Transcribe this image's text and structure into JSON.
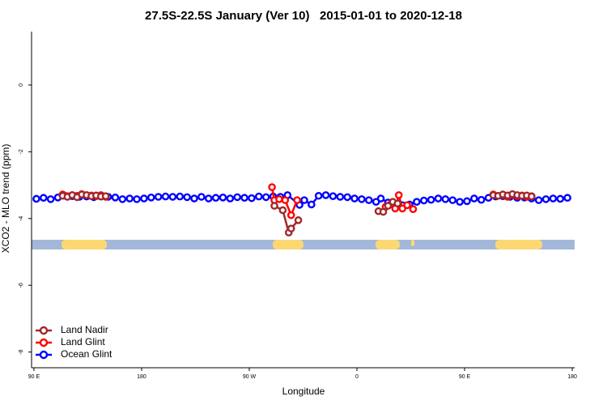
{
  "chart_data": {
    "type": "line",
    "title": "27.5S-22.5S January (Ver 10)   2015-01-01 to 2020-12-18",
    "x_label": "Longitude",
    "y_label": "XCO2 - MLO trend (ppm)",
    "xlim": [
      88,
      542
    ],
    "ylim": [
      -8.47,
      1.6
    ],
    "xticks": [
      {
        "value": 90,
        "label": "90 E"
      },
      180,
      {
        "value": 270,
        "label": "90 W"
      },
      {
        "value": 360,
        "label": "0"
      },
      {
        "value": 450,
        "label": "90 E"
      },
      {
        "value": 540,
        "label": "180"
      }
    ],
    "yticks": [
      0,
      -2,
      -4,
      -6,
      -8
    ],
    "legend": "bottom-left",
    "series": [
      {
        "name": "Land Nadir",
        "color": "#a0282c",
        "x": [
          114,
          118,
          122,
          126,
          130,
          134,
          138,
          142,
          146,
          150,
          null,
          291,
          298,
          303,
          305,
          311,
          null,
          378,
          382,
          386,
          390,
          394,
          null,
          474,
          478,
          482,
          486,
          490,
          494,
          498,
          502,
          506
        ],
        "values": [
          -3.32,
          -3.35,
          -3.3,
          -3.36,
          -3.28,
          -3.3,
          -3.33,
          -3.31,
          -3.34,
          -3.33,
          null,
          -3.62,
          -3.75,
          -4.42,
          -4.3,
          -4.05,
          null,
          -3.78,
          -3.8,
          -3.62,
          -3.5,
          -3.55,
          null,
          -3.3,
          -3.32,
          -3.28,
          -3.31,
          -3.27,
          -3.3,
          -3.32,
          -3.31,
          -3.34
        ]
      },
      {
        "name": "Land Glint",
        "color": "#ff0000",
        "x": [
          114,
          118,
          122,
          126,
          130,
          134,
          138,
          142,
          146,
          150,
          null,
          289,
          291,
          295,
          300,
          305,
          310,
          null,
          384,
          388,
          392,
          395,
          398,
          402,
          407,
          null,
          474,
          478,
          482,
          486,
          490,
          494,
          498,
          502,
          506
        ],
        "values": [
          -3.28,
          -3.33,
          -3.3,
          -3.32,
          -3.27,
          -3.3,
          -3.31,
          -3.33,
          -3.3,
          -3.35,
          null,
          -3.06,
          -3.45,
          -3.42,
          -3.45,
          -3.9,
          -3.45,
          null,
          -3.65,
          -3.58,
          -3.7,
          -3.3,
          -3.7,
          -3.6,
          -3.72,
          null,
          -3.28,
          -3.32,
          -3.3,
          -3.35,
          -3.29,
          -3.33,
          -3.31,
          -3.35,
          -3.33
        ]
      },
      {
        "name": "Ocean Glint",
        "color": "#0000ff",
        "x": [
          92,
          98,
          104,
          110,
          116,
          122,
          128,
          134,
          140,
          146,
          152,
          158,
          164,
          170,
          176,
          182,
          188,
          194,
          200,
          206,
          212,
          218,
          224,
          230,
          236,
          242,
          248,
          254,
          260,
          266,
          272,
          278,
          284,
          290,
          296,
          302,
          312,
          316,
          322,
          328,
          334,
          340,
          346,
          352,
          358,
          364,
          370,
          376,
          380,
          386,
          392,
          398,
          404,
          410,
          416,
          422,
          428,
          434,
          440,
          446,
          452,
          458,
          464,
          470,
          476,
          482,
          488,
          494,
          500,
          506,
          512,
          518,
          524,
          530,
          536
        ],
        "values": [
          -3.41,
          -3.38,
          -3.42,
          -3.37,
          -3.32,
          -3.33,
          -3.35,
          -3.34,
          -3.36,
          -3.34,
          -3.35,
          -3.37,
          -3.42,
          -3.4,
          -3.42,
          -3.4,
          -3.37,
          -3.35,
          -3.34,
          -3.35,
          -3.34,
          -3.36,
          -3.4,
          -3.35,
          -3.4,
          -3.38,
          -3.37,
          -3.4,
          -3.36,
          -3.38,
          -3.39,
          -3.34,
          -3.36,
          -3.34,
          -3.35,
          -3.3,
          -3.59,
          -3.45,
          -3.58,
          -3.32,
          -3.3,
          -3.33,
          -3.35,
          -3.36,
          -3.4,
          -3.42,
          -3.45,
          -3.5,
          -3.4,
          -3.52,
          -3.58,
          -3.6,
          -3.58,
          -3.5,
          -3.46,
          -3.44,
          -3.4,
          -3.42,
          -3.45,
          -3.5,
          -3.48,
          -3.4,
          -3.44,
          -3.38,
          -3.34,
          -3.33,
          -3.35,
          -3.38,
          -3.37,
          -3.4,
          -3.45,
          -3.42,
          -3.4,
          -3.41,
          -3.38
        ]
      }
    ]
  }
}
